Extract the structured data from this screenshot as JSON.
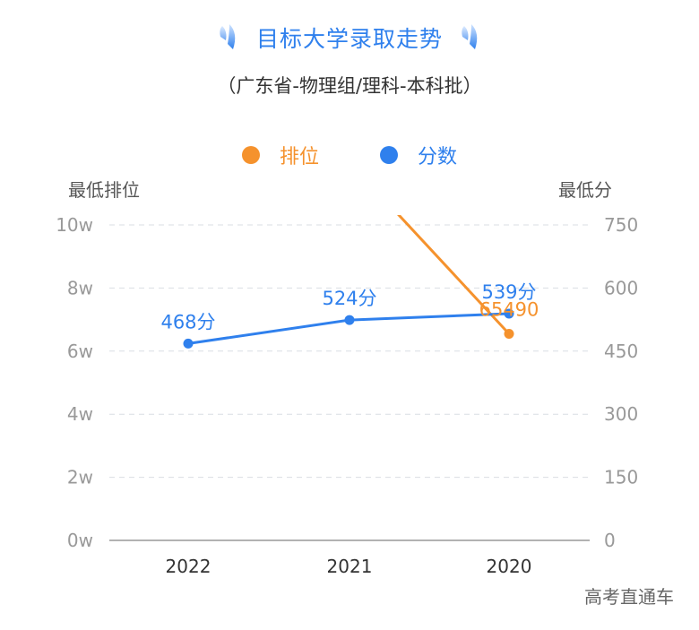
{
  "title": "目标大学录取走势",
  "subtitle": "（广东省-物理组/理科-本科批）",
  "legend": [
    {
      "label": "排位",
      "color": "#f5922d"
    },
    {
      "label": "分数",
      "color": "#2f80ed"
    }
  ],
  "left_axis_title": "最低排位",
  "right_axis_title": "最低分",
  "watermark": "高考直通车",
  "chart_data": {
    "type": "line",
    "categories": [
      "2022",
      "2021",
      "2020"
    ],
    "y_left": {
      "title": "最低排位",
      "range": [
        0,
        100000
      ],
      "ticks": [
        0,
        20000,
        40000,
        60000,
        80000,
        100000
      ],
      "tick_labels": [
        "0w",
        "2w",
        "4w",
        "6w",
        "8w",
        "10w"
      ]
    },
    "y_right": {
      "title": "最低分",
      "range": [
        0,
        750
      ],
      "ticks": [
        0,
        150,
        300,
        450,
        600,
        750
      ],
      "tick_labels": [
        "0",
        "150",
        "300",
        "450",
        "600",
        "750"
      ]
    },
    "series": [
      {
        "name": "排位",
        "axis": "left",
        "color": "#f5922d",
        "values": [
          null,
          120000,
          65490
        ],
        "data_labels": [
          "",
          "",
          "65490"
        ]
      },
      {
        "name": "分数",
        "axis": "right",
        "color": "#2f80ed",
        "values": [
          468,
          524,
          539
        ],
        "data_labels": [
          "468分",
          "524分",
          "539分"
        ]
      }
    ],
    "grid": true,
    "legend_position": "top-center"
  }
}
